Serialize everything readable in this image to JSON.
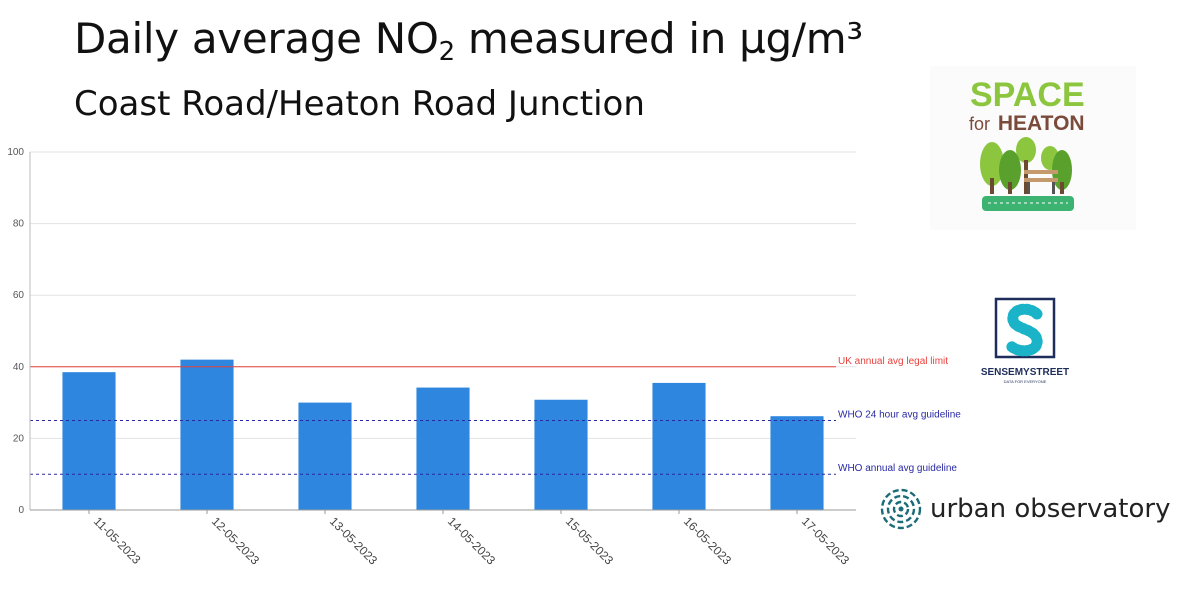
{
  "title": {
    "main_prefix": "Daily average NO",
    "main_subscript": "2",
    "main_suffix": " measured in µg/m³",
    "subtitle": "Coast Road/Heaton Road Junction"
  },
  "chart_data": {
    "type": "bar",
    "categories": [
      "11-05-2023",
      "12-05-2023",
      "13-05-2023",
      "14-05-2023",
      "15-05-2023",
      "16-05-2023",
      "17-05-2023"
    ],
    "values": [
      38.5,
      42,
      30,
      34.2,
      30.8,
      35.5,
      26.2
    ],
    "ylim": [
      0,
      100
    ],
    "yticks": [
      0,
      20,
      40,
      60,
      80,
      100
    ],
    "grid": true,
    "bar_color": "#2e86de",
    "reference_lines": [
      {
        "label": "UK annual avg legal limit",
        "value": 40,
        "style": "solid",
        "color": "#e8413c"
      },
      {
        "label": "WHO 24 hour avg guideline",
        "value": 25,
        "style": "dashed",
        "color": "#2929a3"
      },
      {
        "label": "WHO annual avg guideline",
        "value": 10,
        "style": "dashed",
        "color": "#2929a3"
      }
    ]
  },
  "logos": {
    "space_for_heaton": {
      "line1": "SPACE",
      "line2_prefix": "for",
      "line2_main": "HEATON"
    },
    "sensemystreet": {
      "brand": "SENSEMYSTREET",
      "tagline": "DATA FOR EVERYONE"
    },
    "urban_observatory": {
      "text": "urban observatory"
    }
  },
  "colors": {
    "sfh_green": "#8cc63f",
    "sfh_brown": "#7a4a3a",
    "sms_teal": "#1ab3c8",
    "sms_navy": "#1f2d5a",
    "uo_teal": "#1d6b78"
  }
}
